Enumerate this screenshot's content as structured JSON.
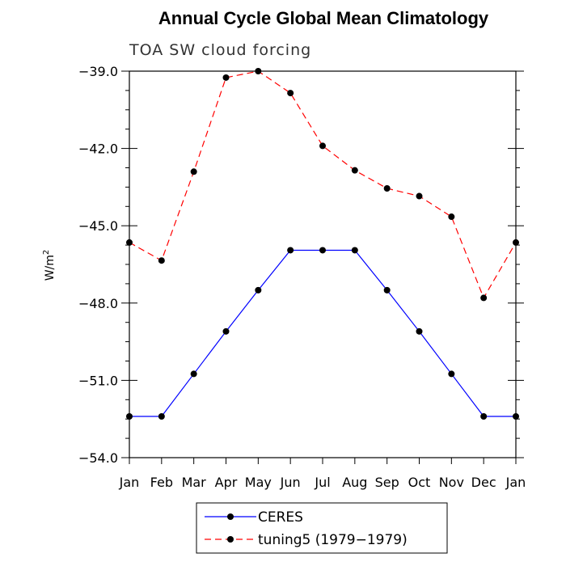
{
  "chart_data": {
    "type": "line",
    "title": "Annual Cycle Global Mean Climatology",
    "subtitle": "TOA SW cloud forcing",
    "xlabel": "",
    "ylabel": "W/m",
    "ylabel_superscript": "2",
    "categories": [
      "Jan",
      "Feb",
      "Mar",
      "Apr",
      "May",
      "Jun",
      "Jul",
      "Aug",
      "Sep",
      "Oct",
      "Nov",
      "Dec",
      "Jan"
    ],
    "ylim": [
      -54.0,
      -39.0
    ],
    "yticks": [
      -54.0,
      -51.0,
      -48.0,
      -45.0,
      -42.0,
      -39.0
    ],
    "ytick_labels": [
      "−54.0",
      "−51.0",
      "−48.0",
      "−45.0",
      "−42.0",
      "−39.0"
    ],
    "series": [
      {
        "name": "CERES",
        "color": "#0000ff",
        "dash": "solid",
        "values": [
          -52.4,
          -52.4,
          -50.75,
          -49.1,
          -47.5,
          -45.95,
          -45.95,
          -45.95,
          -47.5,
          -49.1,
          -50.75,
          -52.4,
          -52.4
        ]
      },
      {
        "name": "tuning5 (1979−1979)",
        "color": "#ff0000",
        "dash": "dashed",
        "values": [
          -45.65,
          -46.35,
          -42.9,
          -39.25,
          -39.0,
          -39.85,
          -41.9,
          -42.85,
          -43.55,
          -43.85,
          -44.65,
          -47.8,
          -45.65
        ]
      }
    ],
    "legend": {
      "placement": "bottom-center"
    },
    "grid": false
  }
}
